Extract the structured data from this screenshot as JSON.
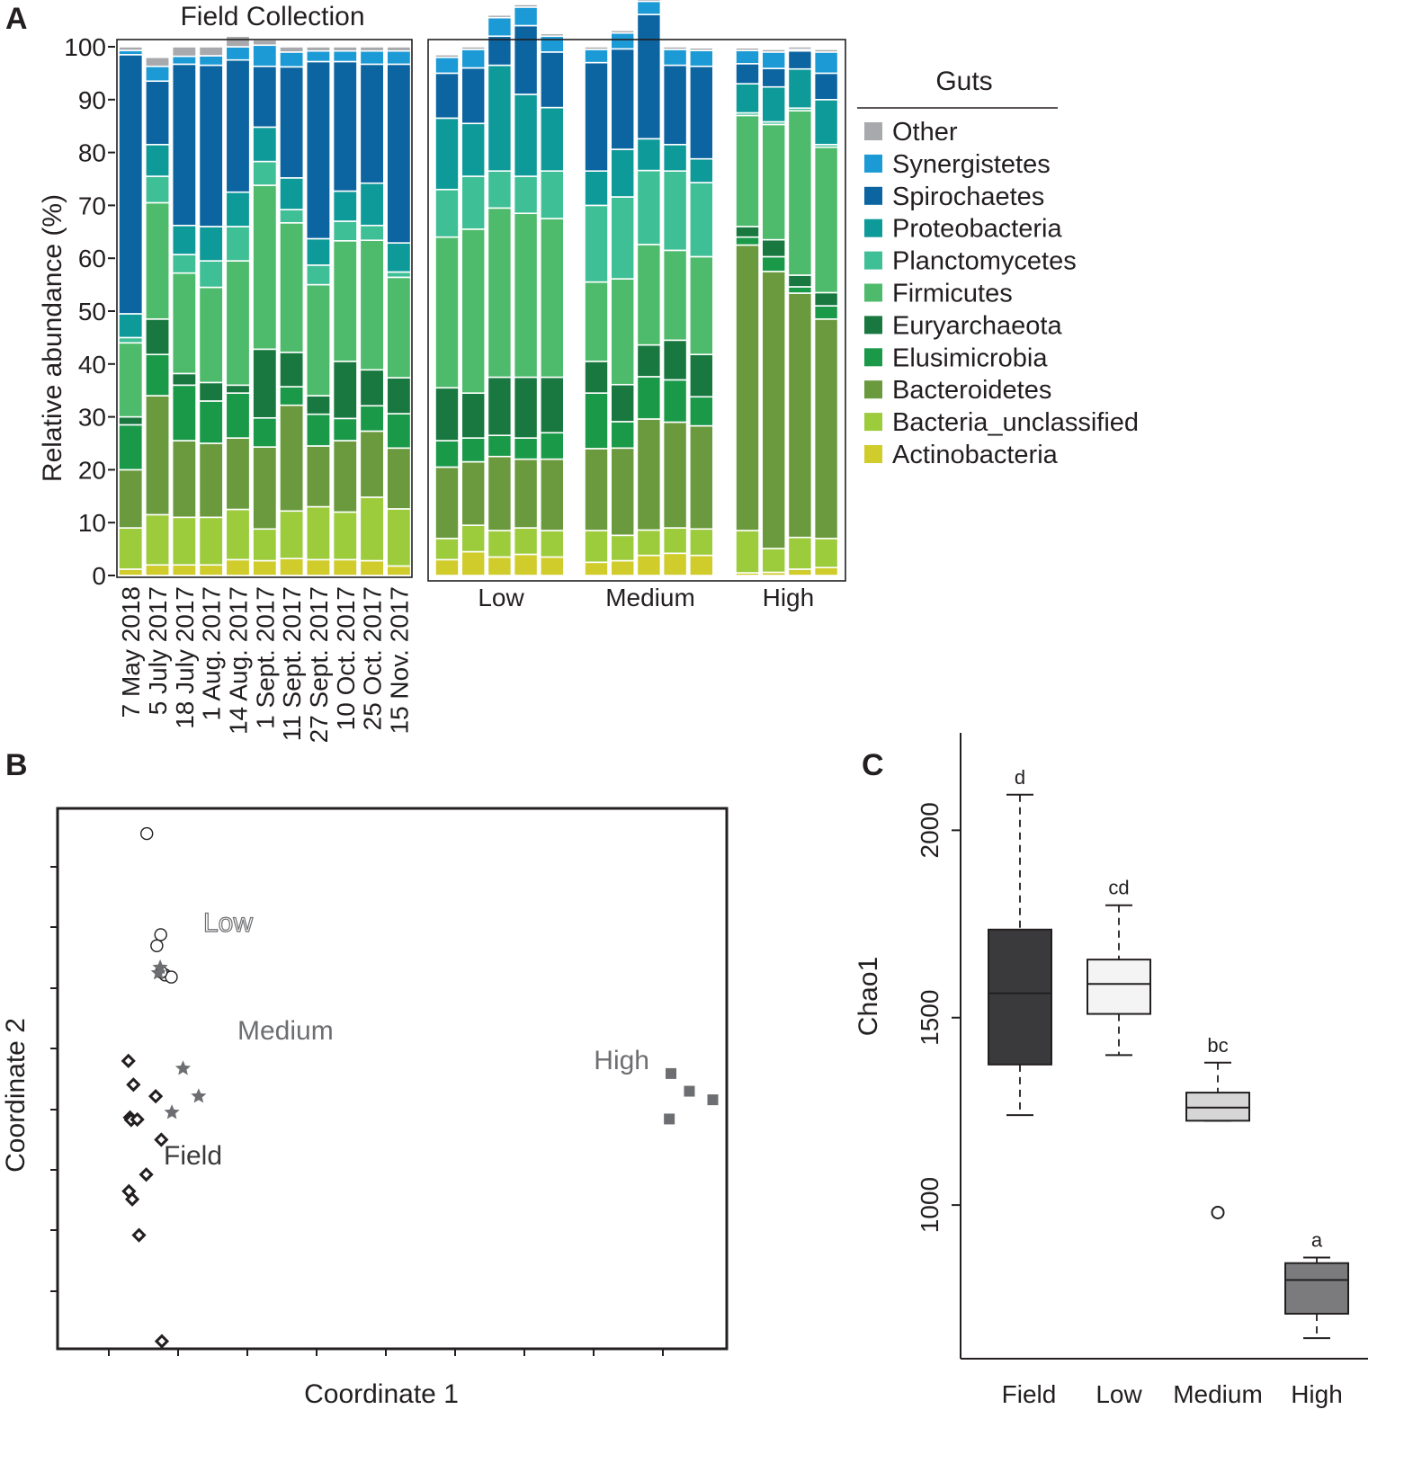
{
  "chart_data": [
    {
      "panel": "A",
      "type": "stacked-bar",
      "title": "Field Collection",
      "ylabel": "Relative abundance (%)",
      "ylim": [
        0,
        100
      ],
      "yticks": [
        "0",
        "10",
        "20",
        "30",
        "40",
        "50",
        "60",
        "70",
        "80",
        "90",
        "100"
      ],
      "legend_title": "Guts",
      "taxa": [
        "Actinobacteria",
        "Bacteria_unclassified",
        "Bacteroidetes",
        "Elusimicrobia",
        "Euryarchaeota",
        "Firmicutes",
        "Planctomycetes",
        "Proteobacteria",
        "Spirochaetes",
        "Synergistetes",
        "Other"
      ],
      "legend_order": [
        "Other",
        "Synergistetes",
        "Spirochaetes",
        "Proteobacteria",
        "Planctomycetes",
        "Firmicutes",
        "Euryarchaeota",
        "Elusimicrobia",
        "Bacteroidetes",
        "Bacteria_unclassified",
        "Actinobacteria"
      ],
      "colors": {
        "Other": "#a7a9ac",
        "Synergistetes": "#1b9ad6",
        "Spirochaetes": "#0c64a0",
        "Proteobacteria": "#0f9a9a",
        "Planctomycetes": "#3fbf96",
        "Firmicutes": "#4dbb6b",
        "Euryarchaeota": "#18783f",
        "Elusimicrobia": "#1a9948",
        "Bacteroidetes": "#6a9a3d",
        "Bacteria_unclassified": "#9ccb3c",
        "Actinobacteria": "#cfcc2c"
      },
      "field_samples": [
        {
          "label": "7 May 2018",
          "values": [
            1.2,
            7.8,
            11,
            8.5,
            1.5,
            14,
            1,
            4.5,
            49,
            0.8,
            0.7
          ]
        },
        {
          "label": "5 July 2017",
          "values": [
            2,
            9.5,
            22.5,
            7.8,
            6.7,
            22,
            5,
            6,
            12,
            2.8,
            1.7
          ]
        },
        {
          "label": "18 July 2017",
          "values": [
            2,
            9,
            14.5,
            10.5,
            2.2,
            19,
            3.5,
            5.5,
            30.5,
            1.5,
            1.8
          ]
        },
        {
          "label": "1 Aug. 2017",
          "values": [
            2,
            9,
            14,
            8,
            3.5,
            18,
            5,
            6.5,
            30.5,
            1.8,
            1.7
          ]
        },
        {
          "label": "14 Aug. 2017",
          "values": [
            3,
            9.5,
            13.5,
            8.5,
            1.5,
            23.5,
            6.5,
            6.5,
            25,
            2.5,
            2
          ]
        },
        {
          "label": "1 Sept. 2017",
          "values": [
            2.8,
            6,
            15.5,
            5.5,
            13,
            31,
            4.5,
            6.5,
            11.5,
            4,
            1
          ]
        },
        {
          "label": "11 Sept. 2017",
          "values": [
            3.2,
            9,
            20,
            3.5,
            6.5,
            24.5,
            2.5,
            6,
            21,
            2.8,
            1
          ]
        },
        {
          "label": "27 Sept. 2017",
          "values": [
            3,
            10,
            11.5,
            6,
            3.5,
            21,
            3.7,
            5,
            33.5,
            2,
            0.8
          ]
        },
        {
          "label": "10 Oct. 2017",
          "values": [
            3,
            9,
            13.5,
            4.2,
            10.8,
            22.8,
            3.7,
            5.7,
            24.5,
            2,
            0.8
          ]
        },
        {
          "label": "25 Oct. 2017",
          "values": [
            2.8,
            12,
            12.5,
            4.8,
            6.8,
            24.5,
            2.8,
            8,
            22.5,
            2.5,
            0.8
          ]
        },
        {
          "label": "15 Nov. 2017",
          "values": [
            1.8,
            10.8,
            11.5,
            6.5,
            6.8,
            19,
            1,
            5.5,
            33.8,
            2.5,
            0.8
          ]
        }
      ],
      "treatment_groups": [
        {
          "label": "Low",
          "samples": [
            {
              "values": [
                3,
                4,
                13.5,
                5,
                10,
                28.5,
                9,
                13.5,
                8.5,
                3,
                0.5
              ]
            },
            {
              "values": [
                4.5,
                5,
                12,
                4.5,
                8.5,
                31,
                10,
                10,
                10.5,
                3.5,
                0.5
              ]
            },
            {
              "values": [
                3.5,
                5,
                14,
                4,
                11,
                32,
                7,
                20,
                5.5,
                3.5,
                0.5
              ]
            },
            {
              "values": [
                4,
                5,
                13,
                4,
                11.5,
                31,
                7,
                15.5,
                13,
                3.5,
                0.5
              ]
            },
            {
              "values": [
                3.5,
                5,
                13.5,
                5,
                10.5,
                30,
                9,
                12,
                10.5,
                3,
                0.5
              ]
            }
          ]
        },
        {
          "label": "Medium",
          "samples": [
            {
              "values": [
                2.5,
                6,
                15.5,
                10.5,
                6,
                15,
                14.5,
                6.5,
                20.5,
                2.5,
                0.5
              ]
            },
            {
              "values": [
                2.8,
                4.8,
                16.5,
                5,
                7,
                20,
                15.5,
                9,
                19,
                3,
                0.5
              ]
            },
            {
              "values": [
                3.8,
                4.8,
                21,
                8,
                6,
                19,
                14,
                6,
                23.5,
                2.5,
                0.5
              ]
            },
            {
              "values": [
                4.2,
                4.8,
                20,
                8,
                7.5,
                17,
                15,
                5,
                15,
                3,
                0.5
              ]
            },
            {
              "values": [
                3.8,
                5,
                19.5,
                5.5,
                8,
                18.5,
                14,
                4.5,
                17.5,
                3,
                0.5
              ]
            }
          ]
        },
        {
          "label": "High",
          "samples": [
            {
              "values": [
                0.5,
                8,
                54,
                1.5,
                2,
                21,
                0.5,
                5.5,
                3.8,
                2.5,
                0.5
              ]
            },
            {
              "values": [
                0.6,
                4.5,
                52.4,
                2.8,
                3.2,
                21.8,
                0.5,
                6.6,
                3.5,
                3.1,
                0.5
              ]
            },
            {
              "values": [
                1.2,
                6,
                46.2,
                1.2,
                2.2,
                31.1,
                0.5,
                7.4,
                3.4,
                0.3,
                0.5
              ]
            },
            {
              "values": [
                1.5,
                5.5,
                41.5,
                2.5,
                2.5,
                27.5,
                0.5,
                8.5,
                5,
                4,
                0.5
              ]
            }
          ]
        }
      ]
    },
    {
      "panel": "B",
      "type": "scatter",
      "xlabel": "Coordinate 1",
      "ylabel": "Coordinate 2",
      "xlim": [
        -0.3,
        0.9
      ],
      "ylim": [
        -0.72,
        0.35
      ],
      "groups": [
        {
          "name": "Low",
          "label": "Low",
          "marker": "circle",
          "color": "#231f20",
          "points": [
            [
              -0.14,
              0.3
            ],
            [
              -0.115,
              0.1
            ],
            [
              -0.122,
              0.078
            ],
            [
              -0.107,
              0.02
            ],
            [
              -0.096,
              0.016
            ],
            [
              -0.114,
              0.026
            ]
          ]
        },
        {
          "name": "Medium",
          "label": "Medium",
          "marker": "star",
          "color": "#6d6e71",
          "points": [
            [
              -0.116,
              0.035
            ],
            [
              -0.119,
              0.024
            ],
            [
              -0.075,
              -0.165
            ],
            [
              -0.047,
              -0.22
            ],
            [
              -0.095,
              -0.252
            ]
          ]
        },
        {
          "name": "Field",
          "label": "Field",
          "marker": "diamond",
          "color": "#231f20",
          "points": [
            [
              -0.173,
              -0.15
            ],
            [
              -0.164,
              -0.197
            ],
            [
              -0.17,
              -0.262
            ],
            [
              -0.168,
              -0.267
            ],
            [
              -0.157,
              -0.266
            ],
            [
              -0.124,
              -0.22
            ],
            [
              -0.114,
              -0.306
            ],
            [
              -0.141,
              -0.375
            ],
            [
              -0.172,
              -0.408
            ],
            [
              -0.166,
              -0.424
            ],
            [
              -0.154,
              -0.495
            ],
            [
              -0.113,
              -0.705
            ]
          ]
        },
        {
          "name": "High",
          "label": "High",
          "marker": "square",
          "color": "#6d6e71",
          "points": [
            [
              0.8,
              -0.175
            ],
            [
              0.833,
              -0.21
            ],
            [
              0.875,
              -0.227
            ],
            [
              0.797,
              -0.265
            ]
          ]
        }
      ]
    },
    {
      "panel": "C",
      "type": "boxplot",
      "ylabel": "Chao1",
      "ylim": [
        590,
        2260
      ],
      "yticks": [
        "1000",
        "1500",
        "2000"
      ],
      "categories": [
        "Field",
        "Low",
        "Medium",
        "High"
      ],
      "boxes": [
        {
          "name": "Field",
          "min": 1240,
          "q1": 1375,
          "median": 1565,
          "q3": 1735,
          "max": 2095,
          "outliers": [],
          "letter": "d",
          "fill": "#3a3a3c"
        },
        {
          "name": "Low",
          "min": 1400,
          "q1": 1510,
          "median": 1590,
          "q3": 1655,
          "max": 1800,
          "outliers": [],
          "letter": "cd",
          "fill": "#f4f4f4"
        },
        {
          "name": "Medium",
          "min": 1225,
          "q1": 1225,
          "median": 1260,
          "q3": 1300,
          "max": 1380,
          "outliers": [
            980
          ],
          "letter": "bc",
          "fill": "#d6d6d6"
        },
        {
          "name": "High",
          "min": 645,
          "q1": 710,
          "median": 800,
          "q3": 845,
          "max": 860,
          "outliers": [],
          "letter": "a",
          "fill": "#7b7b7d"
        }
      ]
    }
  ]
}
